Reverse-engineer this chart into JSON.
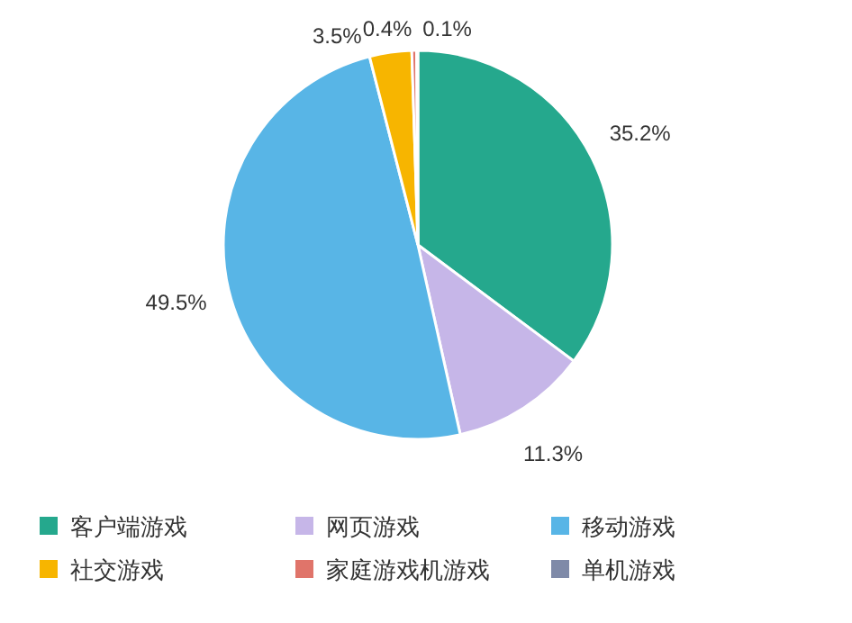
{
  "chart_data": {
    "type": "pie",
    "categories": [
      "客户端游戏",
      "网页游戏",
      "移动游戏",
      "社交游戏",
      "家庭游戏机游戏",
      "单机游戏"
    ],
    "values": [
      35.2,
      11.3,
      49.5,
      3.5,
      0.4,
      0.1
    ],
    "value_labels": [
      "35.2%",
      "11.3%",
      "49.5%",
      "3.5%",
      "0.4%",
      "0.1%"
    ],
    "colors": [
      "#25a88d",
      "#c6b6e8",
      "#58b5e6",
      "#f7b500",
      "#e0746a",
      "#7f8aa8"
    ],
    "legend": "bottom"
  }
}
